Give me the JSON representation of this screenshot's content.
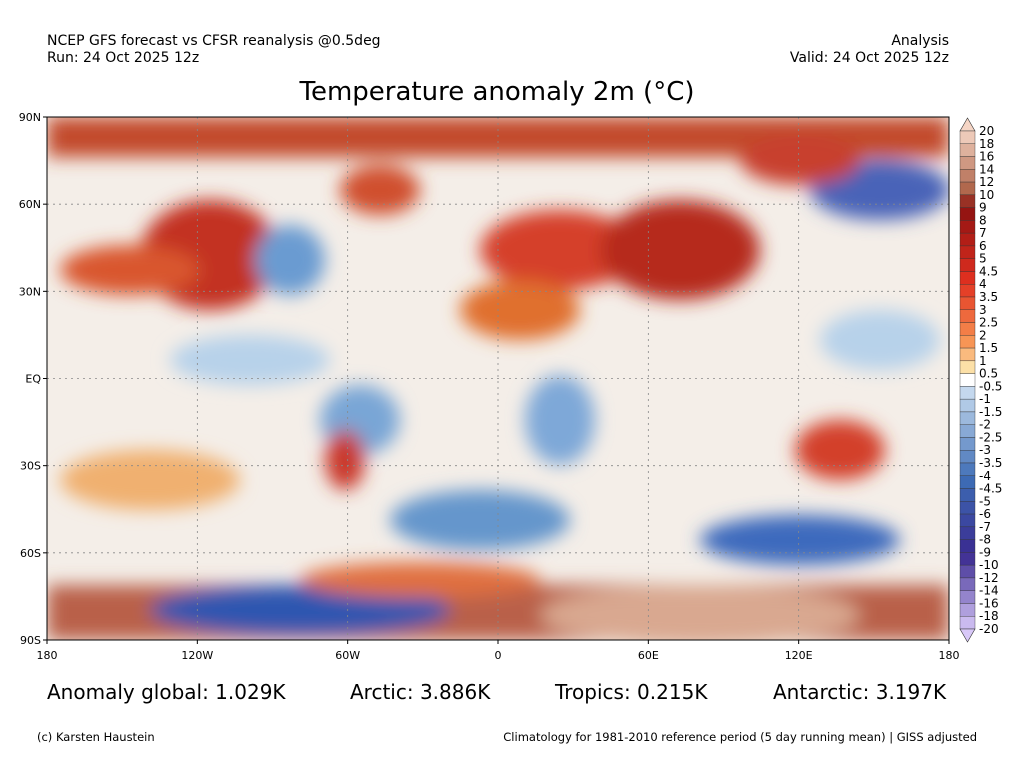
{
  "header": {
    "left": [
      "NCEP GFS forecast vs CFSR reanalysis @0.5deg",
      "Run: 24 Oct 2025 12z"
    ],
    "right": [
      "Analysis",
      "Valid: 24 Oct 2025 12z"
    ],
    "title": "Temperature anomaly 2m (°C)"
  },
  "map": {
    "lat_labels": [
      "90N",
      "60N",
      "30N",
      "EQ",
      "30S",
      "60S",
      "90S"
    ],
    "lon_labels": [
      "180",
      "120W",
      "60W",
      "0",
      "60E",
      "120E",
      "180"
    ]
  },
  "colorbar": {
    "labels": [
      "20",
      "18",
      "16",
      "14",
      "12",
      "10",
      "9",
      "8",
      "7",
      "6",
      "5",
      "4.5",
      "4",
      "3.5",
      "3",
      "2.5",
      "2",
      "1.5",
      "1",
      "0.5",
      "-0.5",
      "-1",
      "-1.5",
      "-2",
      "-2.5",
      "-3",
      "-3.5",
      "-4",
      "-4.5",
      "-5",
      "-6",
      "-7",
      "-8",
      "-9",
      "-10",
      "-12",
      "-14",
      "-16",
      "-18",
      "-20"
    ]
  },
  "stats": [
    "Anomaly global: 1.029K",
    "Arctic: 3.886K",
    "Tropics: 0.215K",
    "Antarctic: 3.197K"
  ],
  "footer": {
    "left": "(c) Karsten Haustein",
    "right": "Climatology for 1981-2010 reference period (5 day running mean) | GISS adjusted"
  }
}
